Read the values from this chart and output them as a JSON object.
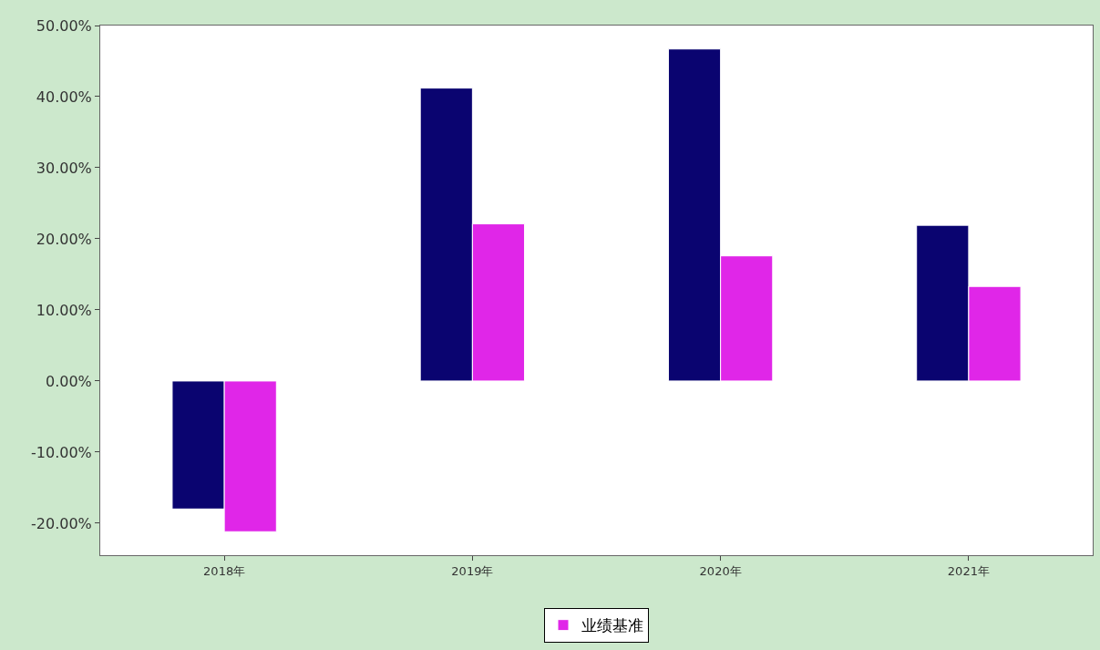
{
  "chart_data": {
    "type": "bar",
    "categories": [
      "2018年",
      "2019年",
      "2020年",
      "2021年"
    ],
    "series": [
      {
        "color": "#0a0470",
        "values": [
          -18.0,
          41.2,
          46.7,
          21.9
        ]
      },
      {
        "name": "业绩基准",
        "color": "#e026e8",
        "values": [
          -21.2,
          22.1,
          17.6,
          13.3
        ]
      }
    ],
    "ylim": [
      -24.5,
      50
    ],
    "yticks": [
      {
        "value": -20,
        "label": "-20.00%"
      },
      {
        "value": -10,
        "label": "-10.00%"
      },
      {
        "value": 0,
        "label": "0.00%"
      },
      {
        "value": 10,
        "label": "10.00%"
      },
      {
        "value": 20,
        "label": "20.00%"
      },
      {
        "value": 30,
        "label": "30.00%"
      },
      {
        "value": 40,
        "label": "40.00%"
      },
      {
        "value": 50,
        "label": "50.00%"
      }
    ],
    "legend": "bottom"
  }
}
